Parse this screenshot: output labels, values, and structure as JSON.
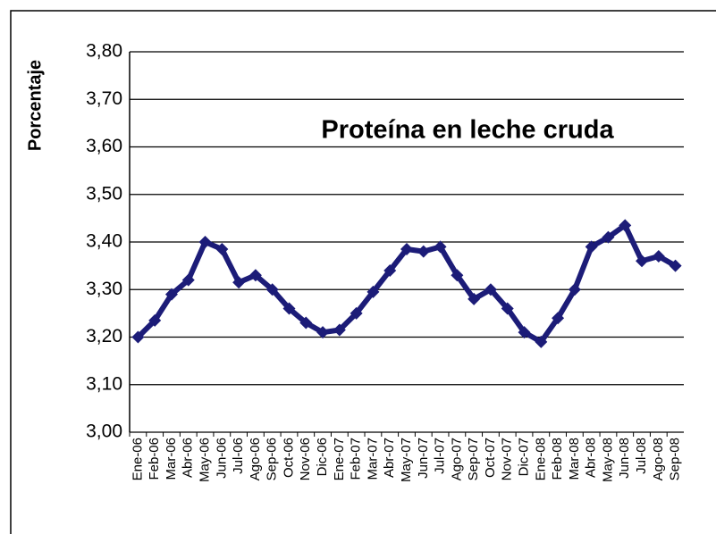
{
  "chart_data": {
    "type": "line",
    "title": "Proteína en leche cruda",
    "y_label": "Porcentaje",
    "categories": [
      "Ene-06",
      "Feb-06",
      "Mar-06",
      "Abr-06",
      "May-06",
      "Jun-06",
      "Jul-06",
      "Ago-06",
      "Sep-06",
      "Oct-06",
      "Nov-06",
      "Dic-06",
      "Ene-07",
      "Feb-07",
      "Mar-07",
      "Abr-07",
      "May-07",
      "Jun-07",
      "Jul-07",
      "Ago-07",
      "Sep-07",
      "Oct-07",
      "Nov-07",
      "Dic-07",
      "Ene-08",
      "Feb-08",
      "Mar-08",
      "Abr-08",
      "May-08",
      "Jun-08",
      "Jul-08",
      "Ago-08",
      "Sep-08"
    ],
    "values": [
      3.2,
      3.235,
      3.29,
      3.32,
      3.4,
      3.385,
      3.315,
      3.33,
      3.3,
      3.26,
      3.23,
      3.21,
      3.215,
      3.25,
      3.295,
      3.34,
      3.385,
      3.38,
      3.39,
      3.33,
      3.28,
      3.3,
      3.26,
      3.21,
      3.19,
      3.24,
      3.3,
      3.39,
      3.41,
      3.435,
      3.36,
      3.37,
      3.35
    ],
    "color": "#1c1c78",
    "ylim": [
      3.0,
      3.8
    ],
    "yticks": [
      {
        "value": 3.0,
        "label": "3,00"
      },
      {
        "value": 3.1,
        "label": "3,10"
      },
      {
        "value": 3.2,
        "label": "3,20"
      },
      {
        "value": 3.3,
        "label": "3,30"
      },
      {
        "value": 3.4,
        "label": "3,40"
      },
      {
        "value": 3.5,
        "label": "3,50"
      },
      {
        "value": 3.6,
        "label": "3,60"
      },
      {
        "value": 3.7,
        "label": "3,70"
      },
      {
        "value": 3.8,
        "label": "3,80"
      }
    ],
    "grid": true
  }
}
